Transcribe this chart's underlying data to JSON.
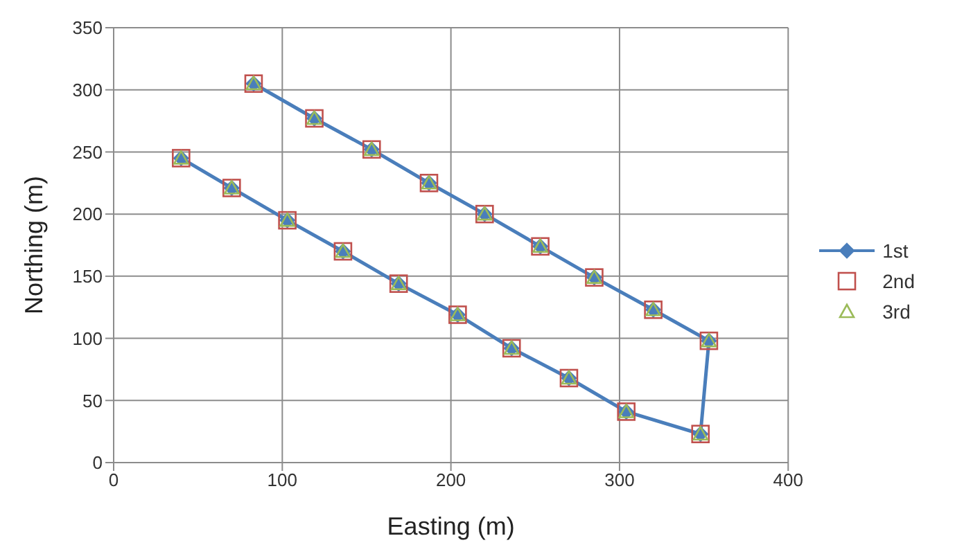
{
  "chart_data": {
    "type": "line",
    "xlabel": "Easting (m)",
    "ylabel": "Northing (m)",
    "xlim": [
      0,
      400
    ],
    "xticks": [
      0,
      100,
      200,
      300,
      400
    ],
    "ylim": [
      0,
      350
    ],
    "yticks": [
      0,
      50,
      100,
      150,
      200,
      250,
      300,
      350
    ],
    "grid": true,
    "legend": "right",
    "x": [
      40,
      70,
      103,
      136,
      169,
      204,
      236,
      270,
      304,
      348,
      353,
      320,
      285,
      253,
      220,
      187,
      153,
      119,
      83
    ],
    "series": [
      {
        "name": "1st",
        "marker": "diamond",
        "color": "#4a7ebb",
        "values": [
          245,
          221,
          195,
          170,
          144,
          119,
          92,
          68,
          41,
          23,
          98,
          123,
          149,
          174,
          200,
          225,
          252,
          277,
          305
        ]
      },
      {
        "name": "2nd",
        "type": "scatter",
        "marker": "square",
        "color": "#c0504d",
        "values": [
          245,
          221,
          195,
          170,
          144,
          119,
          92,
          68,
          41,
          23,
          98,
          123,
          149,
          174,
          200,
          225,
          252,
          277,
          305
        ]
      },
      {
        "name": "3rd",
        "type": "scatter",
        "marker": "triangle",
        "color": "#9bbb59",
        "values": [
          245,
          221,
          195,
          170,
          144,
          119,
          92,
          68,
          41,
          23,
          98,
          123,
          149,
          174,
          200,
          225,
          252,
          277,
          305
        ]
      }
    ]
  }
}
